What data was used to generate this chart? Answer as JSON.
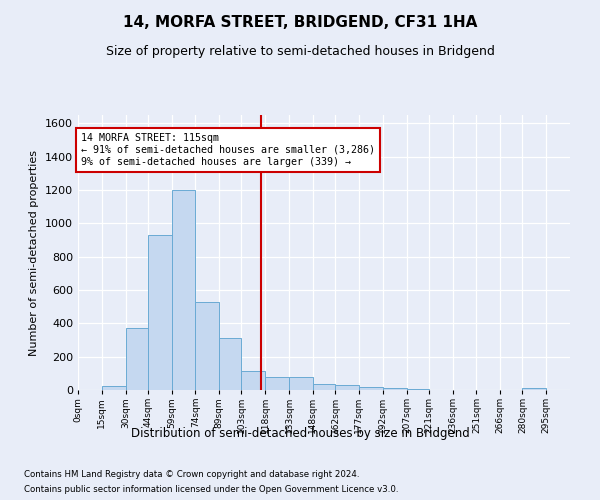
{
  "title": "14, MORFA STREET, BRIDGEND, CF31 1HA",
  "subtitle": "Size of property relative to semi-detached houses in Bridgend",
  "xlabel": "Distribution of semi-detached houses by size in Bridgend",
  "ylabel": "Number of semi-detached properties",
  "bar_color": "#c5d8f0",
  "bar_edge_color": "#6aaad4",
  "annotation_text": "14 MORFA STREET: 115sqm\n← 91% of semi-detached houses are smaller (3,286)\n9% of semi-detached houses are larger (339) →",
  "annotation_box_color": "#ffffff",
  "annotation_box_edge": "#cc0000",
  "vline_x": 115,
  "vline_color": "#cc0000",
  "bin_edges": [
    0,
    15,
    30,
    44,
    59,
    74,
    89,
    103,
    118,
    133,
    148,
    162,
    177,
    192,
    207,
    221,
    236,
    251,
    266,
    280,
    295,
    310
  ],
  "bar_heights": [
    0,
    25,
    370,
    930,
    1200,
    530,
    310,
    115,
    80,
    80,
    35,
    30,
    20,
    15,
    8,
    0,
    0,
    0,
    0,
    15,
    0
  ],
  "ylim": [
    0,
    1650
  ],
  "xlim": [
    0,
    310
  ],
  "yticks": [
    0,
    200,
    400,
    600,
    800,
    1000,
    1200,
    1400,
    1600
  ],
  "tick_positions": [
    0,
    15,
    30,
    44,
    59,
    74,
    89,
    103,
    118,
    133,
    148,
    162,
    177,
    192,
    207,
    221,
    236,
    251,
    266,
    280,
    295
  ],
  "tick_labels": [
    "0sqm",
    "15sqm",
    "30sqm",
    "44sqm",
    "59sqm",
    "74sqm",
    "89sqm",
    "103sqm",
    "118sqm",
    "133sqm",
    "148sqm",
    "162sqm",
    "177sqm",
    "192sqm",
    "207sqm",
    "221sqm",
    "236sqm",
    "251sqm",
    "266sqm",
    "280sqm",
    "295sqm"
  ],
  "footer_line1": "Contains HM Land Registry data © Crown copyright and database right 2024.",
  "footer_line2": "Contains public sector information licensed under the Open Government Licence v3.0.",
  "background_color": "#e8edf8",
  "plot_bg_color": "#e8edf8",
  "grid_color": "#ffffff",
  "title_fontsize": 11,
  "subtitle_fontsize": 9
}
